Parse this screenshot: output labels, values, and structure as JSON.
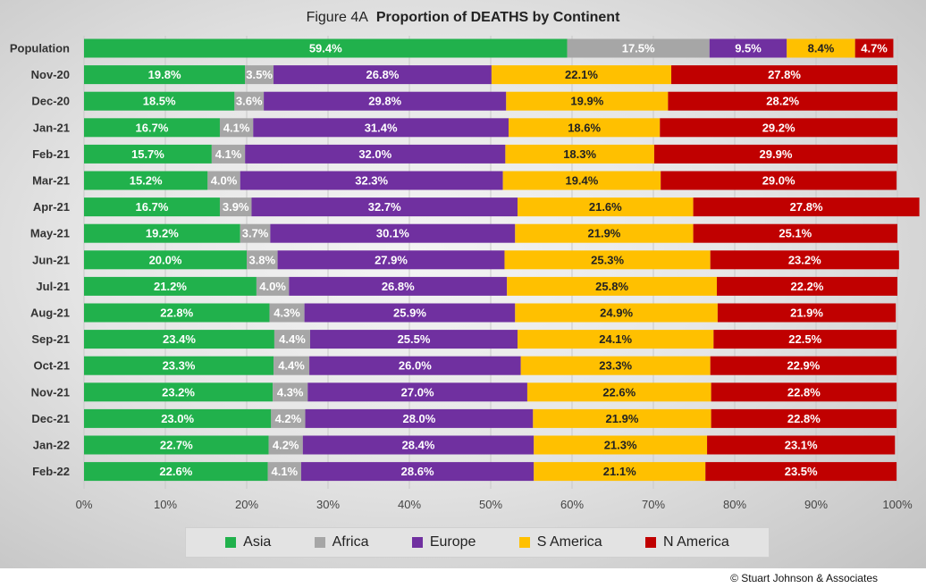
{
  "figure_label": "Figure  4A",
  "figure_title": "Proportion of DEATHS by Continent",
  "copyright": "© Stuart Johnson & Associates",
  "chart_data": {
    "type": "bar",
    "orientation": "horizontal",
    "stacked": "percent",
    "title": "Figure  4A  Proportion of DEATHS by Continent",
    "xlim": [
      0,
      100
    ],
    "x_ticks": [
      "0%",
      "10%",
      "20%",
      "30%",
      "40%",
      "50%",
      "60%",
      "70%",
      "80%",
      "90%",
      "100%"
    ],
    "grid": true,
    "legend_position": "bottom",
    "categories": [
      "Population",
      "Nov-20",
      "Dec-20",
      "Jan-21",
      "Feb-21",
      "Mar-21",
      "Apr-21",
      "May-21",
      "Jun-21",
      "Jul-21",
      "Aug-21",
      "Sep-21",
      "Oct-21",
      "Nov-21",
      "Dec-21",
      "Jan-22",
      "Feb-22"
    ],
    "series": [
      {
        "name": "Asia",
        "color": "#21b14c",
        "values": [
          59.4,
          19.8,
          18.5,
          16.7,
          15.7,
          15.2,
          16.7,
          19.2,
          20.0,
          21.2,
          22.8,
          23.4,
          23.3,
          23.2,
          23.0,
          22.7,
          22.6
        ]
      },
      {
        "name": "Africa",
        "color": "#a6a6a6",
        "values": [
          17.5,
          3.5,
          3.6,
          4.1,
          4.1,
          4.0,
          3.9,
          3.7,
          3.8,
          4.0,
          4.3,
          4.4,
          4.4,
          4.3,
          4.2,
          4.2,
          4.1
        ]
      },
      {
        "name": "Europe",
        "color": "#7030a0",
        "values": [
          9.5,
          26.8,
          29.8,
          31.4,
          32.0,
          32.3,
          32.7,
          30.1,
          27.9,
          26.8,
          25.9,
          25.5,
          26.0,
          27.0,
          28.0,
          28.4,
          28.6
        ]
      },
      {
        "name": "S America",
        "color": "#ffc000",
        "values": [
          8.4,
          22.1,
          19.9,
          18.6,
          18.3,
          19.4,
          21.6,
          21.9,
          25.3,
          25.8,
          24.9,
          24.1,
          23.3,
          22.6,
          21.9,
          21.3,
          21.1
        ]
      },
      {
        "name": "N America",
        "color": "#c00000",
        "values": [
          4.7,
          27.8,
          28.2,
          29.2,
          29.9,
          29.0,
          27.8,
          25.1,
          23.2,
          22.2,
          21.9,
          22.5,
          22.9,
          22.8,
          22.8,
          23.1,
          23.5
        ]
      }
    ]
  }
}
